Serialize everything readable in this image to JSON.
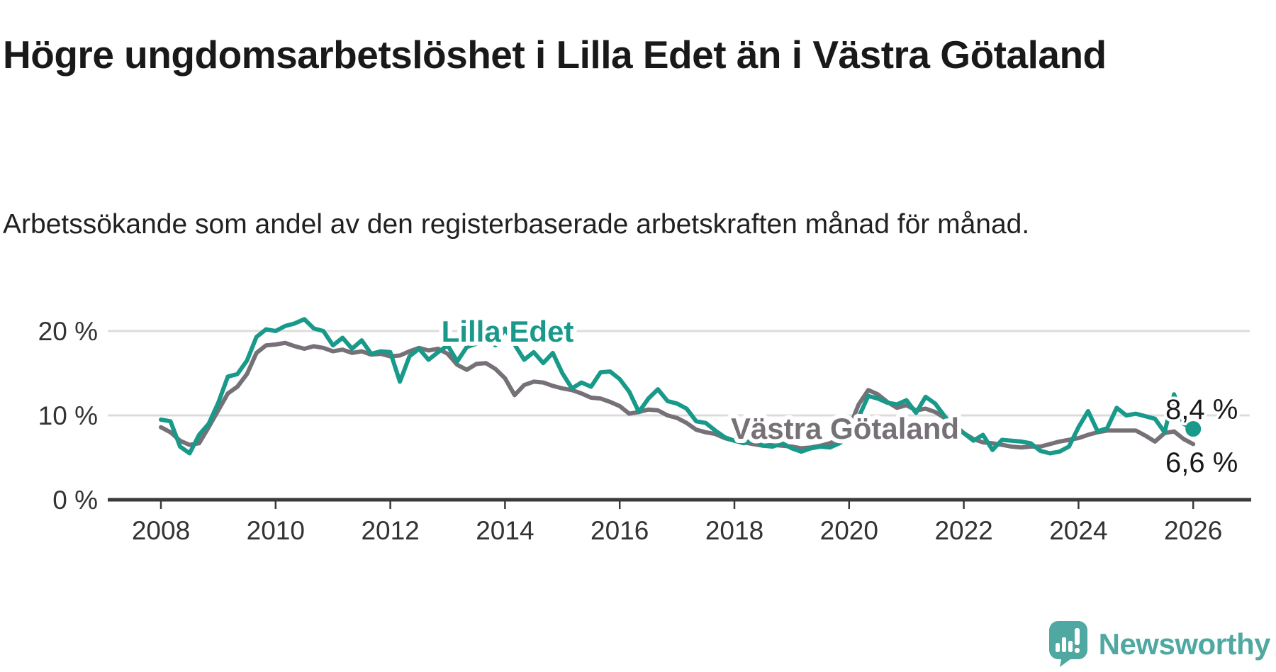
{
  "header": {
    "title": "Högre ungdomsarbetslöshet i Lilla Edet än i Västra Götaland",
    "subtitle": "Arbetssökande som andel av den registerbaserade arbetskraften månad för månad."
  },
  "chart_data": {
    "type": "line",
    "title": "Högre ungdomsarbetslöshet i Lilla Edet än i Västra Götaland",
    "unit": "%",
    "grid": "horizontal-only",
    "x_axis": {
      "start_year": 2008,
      "step_years": 0.1666667,
      "ticks": [
        2008,
        2010,
        2012,
        2014,
        2016,
        2018,
        2020,
        2022,
        2024,
        2026
      ]
    },
    "y_axis": {
      "lim": [
        0,
        22
      ],
      "ticks": [
        {
          "value": 20,
          "label": "20 %"
        },
        {
          "value": 10,
          "label": "10 %"
        },
        {
          "value": 0,
          "label": "0 %"
        }
      ]
    },
    "series": [
      {
        "name": "Lilla Edet",
        "color": "#18998a",
        "end_label": "8,4 %",
        "end_value": 8.4,
        "end_dot": true,
        "values": [
          9.5,
          9.3,
          6.3,
          5.5,
          7.7,
          9.0,
          11.5,
          14.6,
          14.9,
          16.5,
          19.3,
          20.2,
          20.0,
          20.6,
          20.9,
          21.4,
          20.3,
          20.0,
          18.3,
          19.2,
          17.9,
          18.9,
          17.3,
          17.6,
          17.5,
          14.0,
          17.0,
          17.9,
          16.6,
          17.5,
          18.3,
          16.4,
          18.1,
          18.5,
          19.3,
          18.3,
          20.3,
          18.4,
          16.6,
          17.5,
          16.2,
          17.4,
          15.0,
          13.2,
          13.9,
          13.4,
          15.1,
          15.2,
          14.3,
          12.8,
          10.4,
          12.0,
          13.1,
          11.7,
          11.4,
          10.8,
          9.3,
          9.1,
          8.2,
          7.4,
          7.0,
          6.7,
          7.1,
          6.4,
          6.3,
          6.7,
          6.1,
          5.7,
          6.1,
          6.3,
          6.2,
          6.7,
          7.5,
          9.8,
          12.3,
          12.0,
          11.5,
          11.3,
          11.8,
          10.3,
          12.2,
          11.4,
          9.9,
          8.5,
          7.9,
          7.0,
          7.7,
          5.9,
          7.1,
          7.0,
          6.9,
          6.7,
          5.8,
          5.5,
          5.7,
          6.3,
          8.6,
          10.5,
          8.1,
          8.5,
          10.9,
          10.0,
          10.2,
          9.9,
          9.6,
          8.0,
          12.5,
          9.0,
          8.4
        ]
      },
      {
        "name": "Västra Götaland",
        "color": "#767177",
        "end_label": "6,6 %",
        "end_value": 6.6,
        "end_dot": false,
        "values": [
          8.6,
          8.0,
          7.0,
          6.5,
          6.7,
          8.6,
          10.6,
          12.6,
          13.4,
          14.9,
          17.4,
          18.3,
          18.4,
          18.6,
          18.2,
          17.9,
          18.2,
          18.0,
          17.6,
          17.8,
          17.4,
          17.6,
          17.2,
          17.3,
          17.0,
          17.1,
          17.6,
          18.0,
          17.7,
          17.9,
          17.3,
          16.0,
          15.4,
          16.1,
          16.2,
          15.5,
          14.4,
          12.4,
          13.6,
          14.0,
          13.9,
          13.5,
          13.2,
          13.0,
          12.6,
          12.1,
          12.0,
          11.6,
          11.1,
          10.2,
          10.4,
          10.7,
          10.6,
          10.0,
          9.7,
          9.1,
          8.3,
          8.0,
          7.8,
          7.3,
          7.0,
          6.8,
          6.6,
          6.4,
          6.5,
          6.4,
          6.3,
          6.1,
          6.2,
          6.4,
          6.7,
          7.2,
          8.5,
          11.3,
          13.0,
          12.5,
          11.6,
          10.9,
          11.2,
          10.6,
          10.8,
          10.4,
          9.7,
          8.9,
          7.9,
          7.2,
          6.8,
          6.7,
          6.5,
          6.3,
          6.2,
          6.3,
          6.3,
          6.6,
          6.9,
          7.1,
          7.3,
          7.7,
          8.0,
          8.2,
          8.2,
          8.2,
          8.2,
          7.6,
          6.9,
          7.9,
          8.1,
          7.2,
          6.6
        ]
      }
    ],
    "colors": {
      "gridline": "#dcdcdc",
      "axis": "#3a3a3a",
      "tick_text": "#333333"
    }
  },
  "footer": {
    "brand": "Newsworthy",
    "brand_color": "#4fa8a1"
  }
}
